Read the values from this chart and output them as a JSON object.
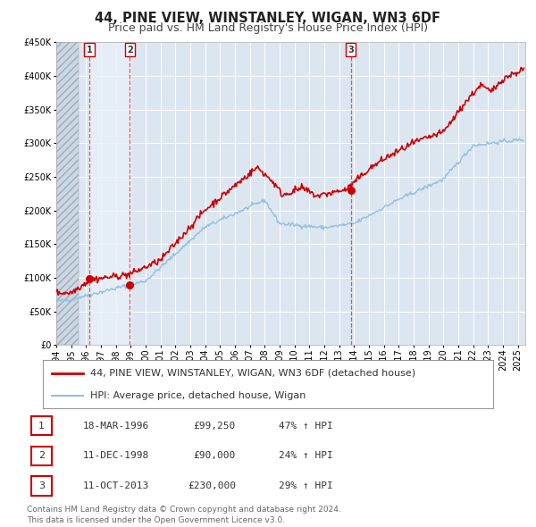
{
  "title": "44, PINE VIEW, WINSTANLEY, WIGAN, WN3 6DF",
  "subtitle": "Price paid vs. HM Land Registry's House Price Index (HPI)",
  "bg_color": "#ffffff",
  "plot_bg_color": "#dce6f1",
  "hatch_color": "#c8d8e8",
  "grid_color": "#ffffff",
  "hpi_line_color": "#92c0e0",
  "price_line_color": "#cc0000",
  "sale_marker_color": "#cc0000",
  "ylim": [
    0,
    450000
  ],
  "yticks": [
    0,
    50000,
    100000,
    150000,
    200000,
    250000,
    300000,
    350000,
    400000,
    450000
  ],
  "ytick_labels": [
    "£0",
    "£50K",
    "£100K",
    "£150K",
    "£200K",
    "£250K",
    "£300K",
    "£350K",
    "£400K",
    "£450K"
  ],
  "xlim_start": 1994.0,
  "xlim_end": 2025.5,
  "hatch_end": 1995.5,
  "xticks": [
    1994,
    1995,
    1996,
    1997,
    1998,
    1999,
    2000,
    2001,
    2002,
    2003,
    2004,
    2005,
    2006,
    2007,
    2008,
    2009,
    2010,
    2011,
    2012,
    2013,
    2014,
    2015,
    2016,
    2017,
    2018,
    2019,
    2020,
    2021,
    2022,
    2023,
    2024,
    2025
  ],
  "sales": [
    {
      "date_num": 1996.21,
      "price": 99250,
      "label": "1"
    },
    {
      "date_num": 1998.94,
      "price": 90000,
      "label": "2"
    },
    {
      "date_num": 2013.78,
      "price": 230000,
      "label": "3"
    }
  ],
  "legend_entries": [
    {
      "label": "44, PINE VIEW, WINSTANLEY, WIGAN, WN3 6DF (detached house)",
      "color": "#cc0000",
      "lw": 2.0
    },
    {
      "label": "HPI: Average price, detached house, Wigan",
      "color": "#92c0e0",
      "lw": 1.5
    }
  ],
  "table_rows": [
    {
      "num": "1",
      "date": "18-MAR-1996",
      "price": "£99,250",
      "hpi": "47% ↑ HPI"
    },
    {
      "num": "2",
      "date": "11-DEC-1998",
      "price": "£90,000",
      "hpi": "24% ↑ HPI"
    },
    {
      "num": "3",
      "date": "11-OCT-2013",
      "price": "£230,000",
      "hpi": "29% ↑ HPI"
    }
  ],
  "footnote": "Contains HM Land Registry data © Crown copyright and database right 2024.\nThis data is licensed under the Open Government Licence v3.0.",
  "title_fontsize": 10.5,
  "subtitle_fontsize": 9,
  "tick_fontsize": 7,
  "legend_fontsize": 8,
  "table_fontsize": 8,
  "footnote_fontsize": 6.5
}
